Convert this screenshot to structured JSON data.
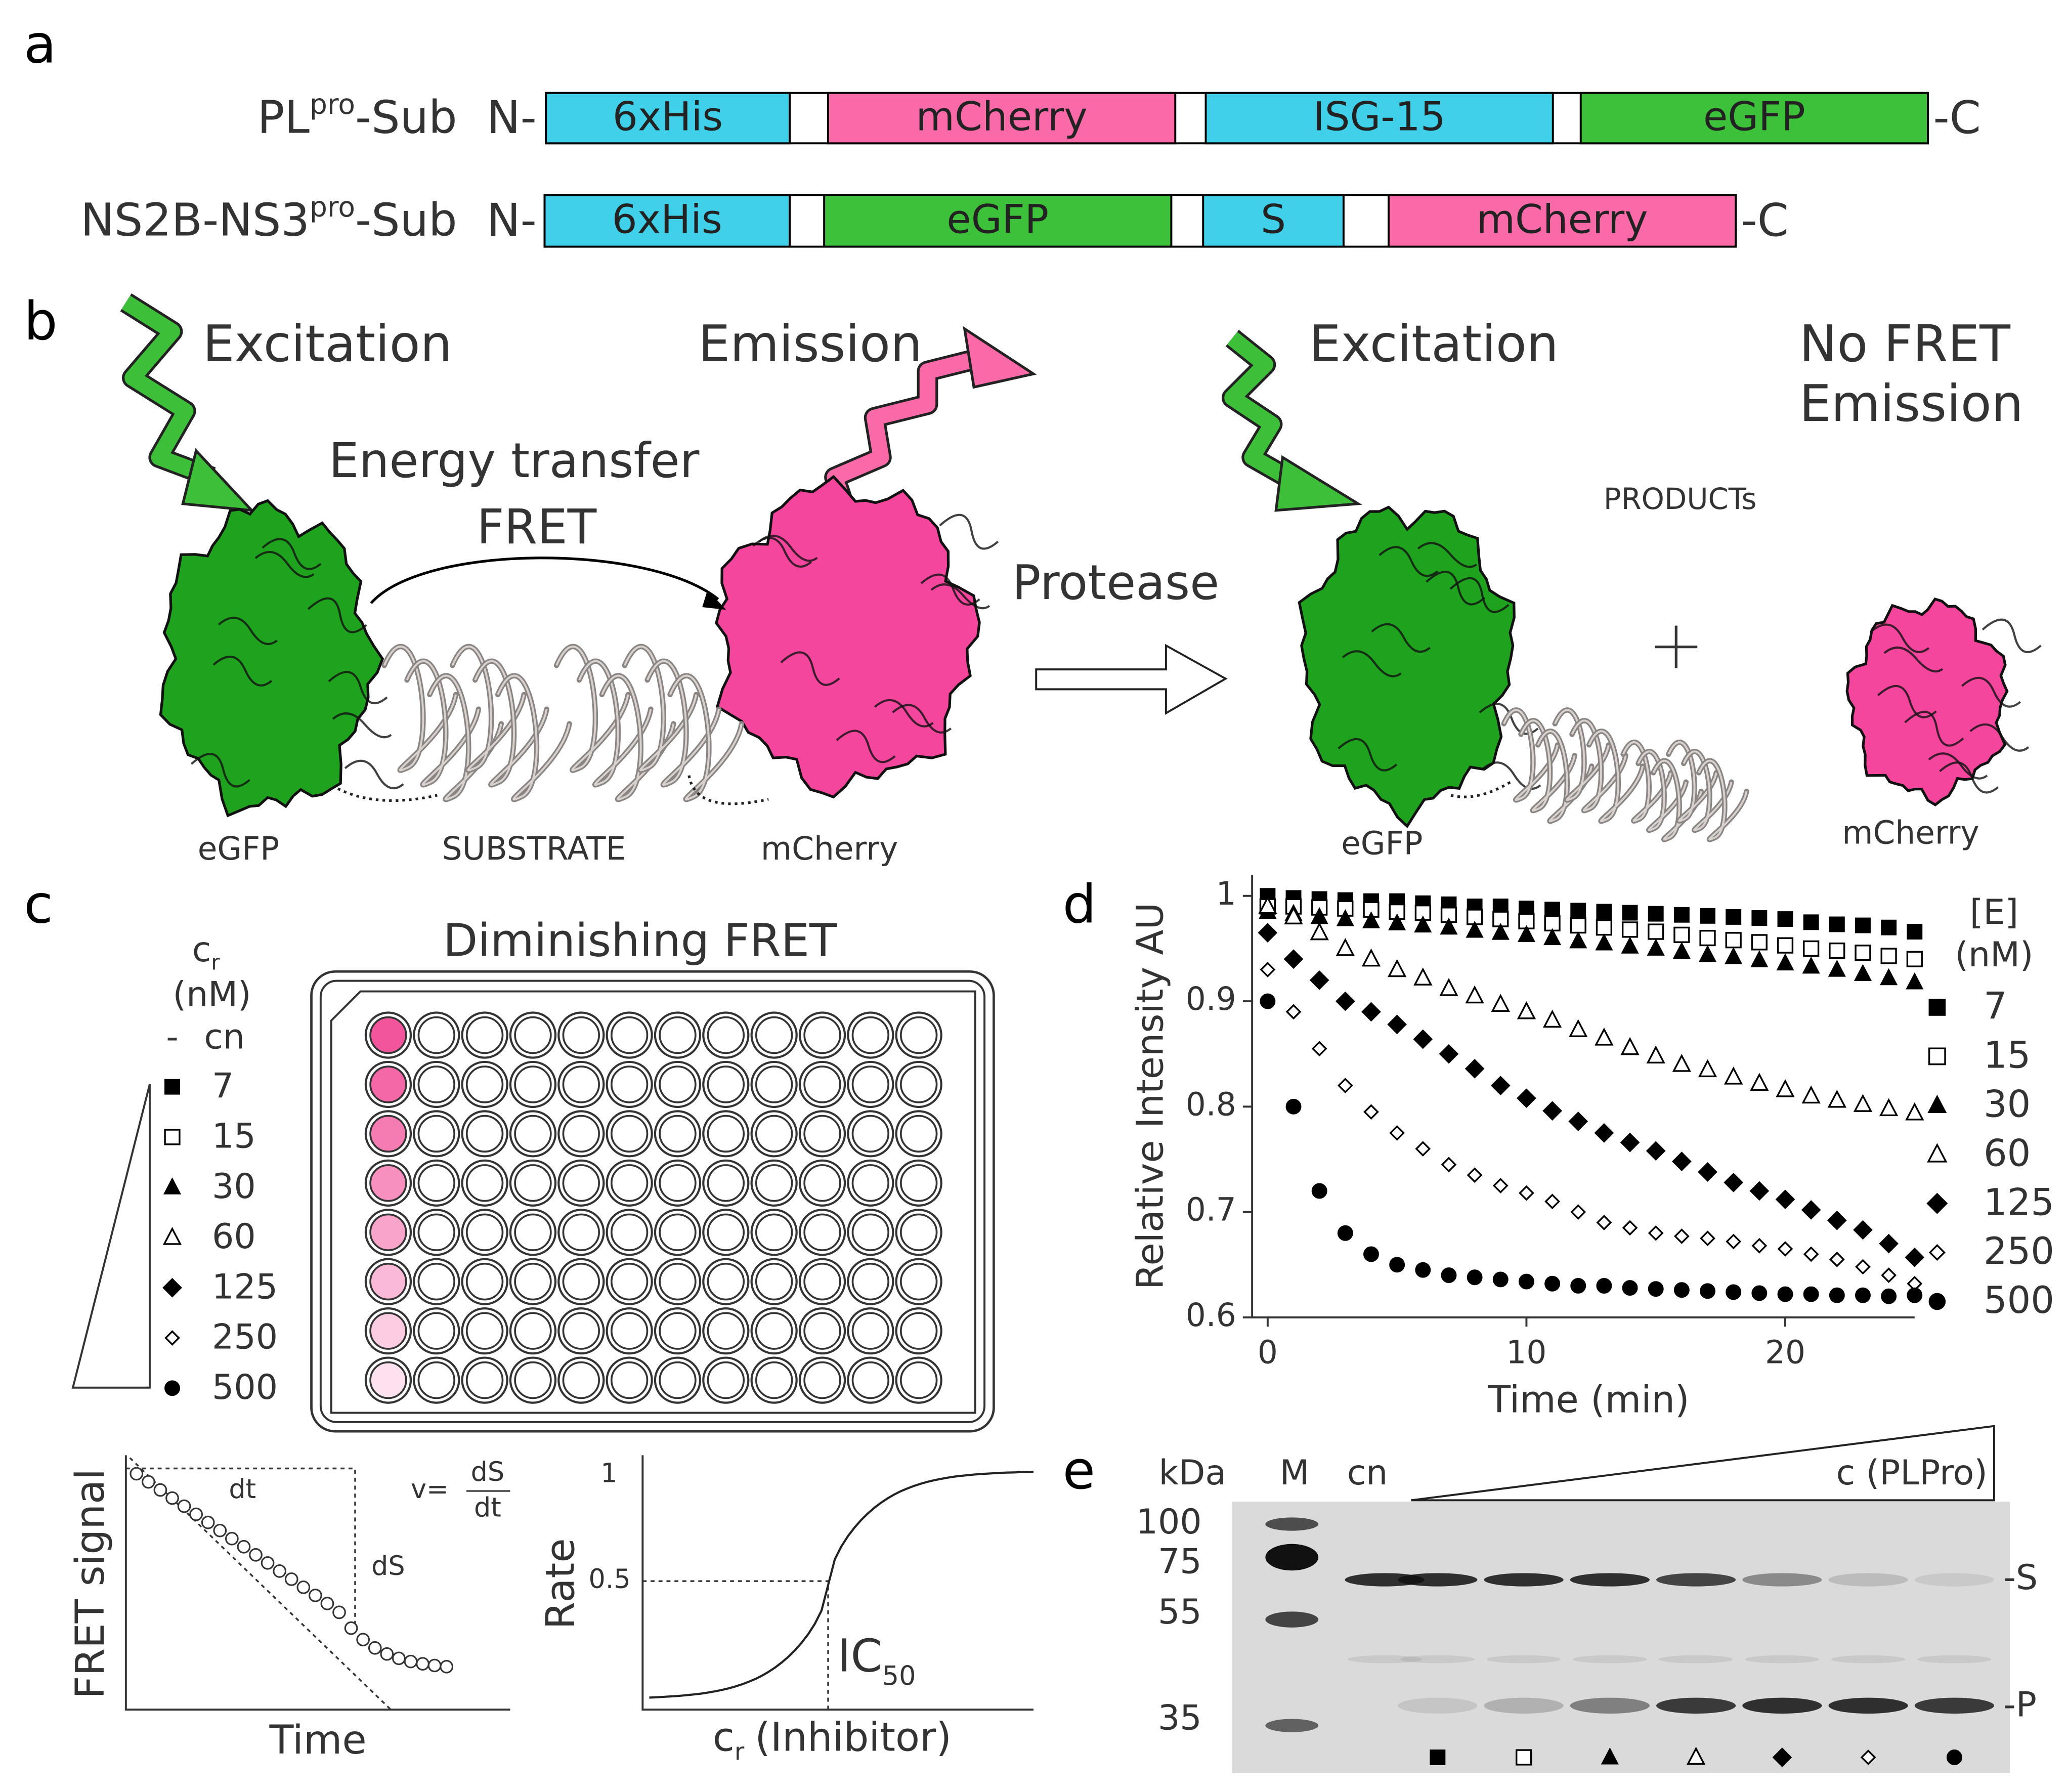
{
  "panel_a": {
    "letter": "a",
    "constructs": [
      {
        "name": "PL",
        "name_sup": "pro",
        "name_suffix": "-Sub",
        "n_term": "N-",
        "c_term": "-C",
        "domains": [
          {
            "label": "6xHis",
            "color": "#40d0ea"
          },
          {
            "label": "mCherry",
            "color": "#fa6aa9"
          },
          {
            "label": "ISG-15",
            "color": "#40d0ea"
          },
          {
            "label": "eGFP",
            "color": "#3dc13a"
          }
        ]
      },
      {
        "name": "NS2B-NS3",
        "name_sup": "pro",
        "name_suffix": "-Sub",
        "n_term": "N-",
        "c_term": "-C",
        "domains": [
          {
            "label": "6xHis",
            "color": "#40d0ea"
          },
          {
            "label": "eGFP",
            "color": "#3dc13a"
          },
          {
            "label": "S",
            "color": "#40d0ea"
          },
          {
            "label": "mCherry",
            "color": "#fa6aa9"
          }
        ]
      }
    ]
  },
  "panel_b": {
    "letter": "b",
    "excitation_left": "Excitation",
    "emission_left": "Emission",
    "energy_transfer": "Energy transfer",
    "fret": "FRET",
    "protease": "Protease",
    "excitation_right": "Excitation",
    "no_fret": "No FRET",
    "emission_right": "Emission",
    "products": "PRODUCTs",
    "labels_left": [
      "eGFP",
      "SUBSTRATE",
      "mCherry"
    ],
    "labels_right": [
      "eGFP",
      "mCherry"
    ]
  },
  "panel_c": {
    "letter": "c",
    "legend_symbol": "c",
    "legend_sub": "r",
    "legend_unit": "(nM)",
    "control_symbol": "-",
    "control_label": "cn",
    "rows": [
      "7",
      "15",
      "30",
      "60",
      "125",
      "250",
      "500"
    ],
    "markers": [
      "square",
      "open-square",
      "triangle",
      "open-triangle",
      "diamond",
      "open-diamond",
      "circle"
    ],
    "plate_title": "Diminishing FRET",
    "well_colors": [
      "#f2559c",
      "#f468a7",
      "#f57cb2",
      "#f790be",
      "#f9a5ca",
      "#fab9d6",
      "#fccde2",
      "#fde1ee"
    ],
    "schematic_left": {
      "ylabel": "FRET signal",
      "xlabel": "Time",
      "dt": "dt",
      "ds": "dS",
      "rate_eq": "v=",
      "rate_num": "dS",
      "rate_den": "dt"
    },
    "schematic_right": {
      "ylabel": "Rate",
      "xlabel": "c",
      "xlabel_sub": "r",
      "xlabel_suffix": "(Inhibitor)",
      "ytick_top": "1",
      "ytick_mid": "0.5",
      "ic": "IC",
      "ic_sub": "50"
    }
  },
  "chart_data": {
    "type": "scatter",
    "letter": "d",
    "xlabel": "Time (min)",
    "ylabel": "Relative Intensity AU",
    "legend_title": [
      "[E]",
      "(nM)"
    ],
    "legend_loc": "right",
    "xlim": [
      -0.6,
      25
    ],
    "ylim": [
      0.6,
      1.02
    ],
    "xticks": [
      0,
      10,
      20
    ],
    "yticks": [
      0.6,
      0.7,
      0.8,
      0.9,
      1
    ],
    "x": [
      0,
      1,
      2,
      3,
      4,
      5,
      6,
      7,
      8,
      9,
      10,
      11,
      12,
      13,
      14,
      15,
      16,
      17,
      18,
      19,
      20,
      21,
      22,
      23,
      24,
      25
    ],
    "series": [
      {
        "name": "7",
        "color": "#000000",
        "marker": "square",
        "values": [
          1,
          0.998,
          0.997,
          0.996,
          0.995,
          0.995,
          0.993,
          0.992,
          0.99,
          0.99,
          0.988,
          0.987,
          0.986,
          0.985,
          0.984,
          0.983,
          0.982,
          0.981,
          0.98,
          0.979,
          0.978,
          0.975,
          0.973,
          0.972,
          0.97,
          0.966
        ]
      },
      {
        "name": "15",
        "color": "#000000",
        "marker": "open-square",
        "values": [
          0.99,
          0.99,
          0.989,
          0.988,
          0.987,
          0.985,
          0.984,
          0.982,
          0.98,
          0.978,
          0.976,
          0.974,
          0.972,
          0.97,
          0.968,
          0.966,
          0.963,
          0.96,
          0.958,
          0.956,
          0.953,
          0.95,
          0.948,
          0.946,
          0.943,
          0.94
        ]
      },
      {
        "name": "30",
        "color": "#000000",
        "marker": "triangle",
        "values": [
          0.985,
          0.983,
          0.98,
          0.978,
          0.976,
          0.974,
          0.972,
          0.97,
          0.967,
          0.965,
          0.963,
          0.96,
          0.957,
          0.955,
          0.952,
          0.95,
          0.947,
          0.944,
          0.942,
          0.939,
          0.936,
          0.933,
          0.93,
          0.926,
          0.922,
          0.918
        ]
      },
      {
        "name": "60",
        "color": "#000000",
        "marker": "open-triangle",
        "values": [
          0.99,
          0.98,
          0.965,
          0.95,
          0.94,
          0.93,
          0.922,
          0.912,
          0.905,
          0.897,
          0.89,
          0.882,
          0.873,
          0.865,
          0.856,
          0.848,
          0.84,
          0.835,
          0.828,
          0.822,
          0.816,
          0.81,
          0.806,
          0.802,
          0.798,
          0.794
        ]
      },
      {
        "name": "125",
        "color": "#000000",
        "marker": "diamond",
        "values": [
          0.965,
          0.94,
          0.92,
          0.9,
          0.89,
          0.878,
          0.864,
          0.85,
          0.836,
          0.82,
          0.808,
          0.796,
          0.786,
          0.775,
          0.766,
          0.758,
          0.748,
          0.738,
          0.728,
          0.72,
          0.712,
          0.702,
          0.692,
          0.683,
          0.67,
          0.657
        ]
      },
      {
        "name": "250",
        "color": "#000000",
        "marker": "open-diamond",
        "values": [
          0.93,
          0.89,
          0.855,
          0.82,
          0.795,
          0.775,
          0.76,
          0.745,
          0.735,
          0.725,
          0.718,
          0.71,
          0.7,
          0.69,
          0.685,
          0.68,
          0.677,
          0.675,
          0.672,
          0.668,
          0.665,
          0.66,
          0.655,
          0.648,
          0.64,
          0.632
        ]
      },
      {
        "name": "500",
        "color": "#000000",
        "marker": "circle",
        "values": [
          0.9,
          0.8,
          0.72,
          0.68,
          0.66,
          0.65,
          0.645,
          0.64,
          0.638,
          0.636,
          0.634,
          0.632,
          0.63,
          0.63,
          0.628,
          0.627,
          0.626,
          0.625,
          0.624,
          0.623,
          0.622,
          0.622,
          0.621,
          0.621,
          0.62,
          0.621
        ]
      }
    ]
  },
  "panel_e": {
    "letter": "e",
    "unit": "kDa",
    "ladder": "M",
    "control": "cn",
    "gradient_label": "c (PLPro)",
    "mw": [
      "100",
      "75",
      "55",
      "35"
    ],
    "bands": [
      "-S",
      "-P"
    ]
  }
}
